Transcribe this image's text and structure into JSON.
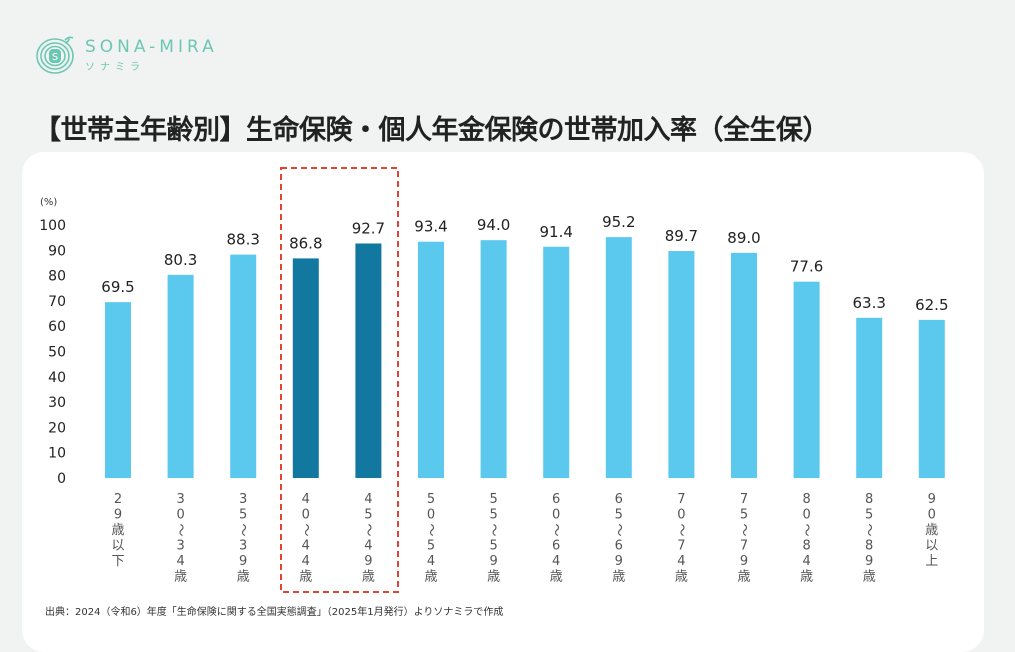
{
  "logo": {
    "name_en": "SONA-MIRA",
    "name_jp": "ソナミラ",
    "color": "#6cc7b2"
  },
  "title": "【世帯主年齢別】生命保険・個人年金保険の世帯加入率（全生保）",
  "source": "出典：2024（令和6）年度「生命保険に関する全国実態調査」（2025年1月発行）よりソナミラで作成",
  "chart_data": {
    "type": "bar",
    "title": "",
    "xlabel": "",
    "ylabel": "(%)",
    "ylim": [
      0,
      100
    ],
    "yticks": [
      0,
      10,
      20,
      30,
      40,
      50,
      60,
      70,
      80,
      90,
      100
    ],
    "grid": false,
    "categories": [
      "29歳以下",
      "30~34歳",
      "35~39歳",
      "40~44歳",
      "45~49歳",
      "50~54歳",
      "55~59歳",
      "60~64歳",
      "65~69歳",
      "70~74歳",
      "75~79歳",
      "80~84歳",
      "85~89歳",
      "90歳以上"
    ],
    "category_labels": [
      [
        "2",
        "9",
        "歳",
        "以",
        "下"
      ],
      [
        "3",
        "0",
        "〜",
        "3",
        "4",
        "歳"
      ],
      [
        "3",
        "5",
        "〜",
        "3",
        "9",
        "歳"
      ],
      [
        "4",
        "0",
        "〜",
        "4",
        "4",
        "歳"
      ],
      [
        "4",
        "5",
        "〜",
        "4",
        "9",
        "歳"
      ],
      [
        "5",
        "0",
        "〜",
        "5",
        "4",
        "歳"
      ],
      [
        "5",
        "5",
        "〜",
        "5",
        "9",
        "歳"
      ],
      [
        "6",
        "0",
        "〜",
        "6",
        "4",
        "歳"
      ],
      [
        "6",
        "5",
        "〜",
        "6",
        "9",
        "歳"
      ],
      [
        "7",
        "0",
        "〜",
        "7",
        "4",
        "歳"
      ],
      [
        "7",
        "5",
        "〜",
        "7",
        "9",
        "歳"
      ],
      [
        "8",
        "0",
        "〜",
        "8",
        "4",
        "歳"
      ],
      [
        "8",
        "5",
        "〜",
        "8",
        "9",
        "歳"
      ],
      [
        "9",
        "0",
        "歳",
        "以",
        "上"
      ]
    ],
    "values": [
      69.5,
      80.3,
      88.3,
      86.8,
      92.7,
      93.4,
      94.0,
      91.4,
      95.2,
      89.7,
      89.0,
      77.6,
      63.3,
      62.5
    ],
    "highlighted": [
      "40~44歳",
      "45~49歳"
    ],
    "colors": {
      "bar": "#5bc8ee",
      "highlight": "#13789f",
      "highlight_box": "#e0452f"
    }
  }
}
